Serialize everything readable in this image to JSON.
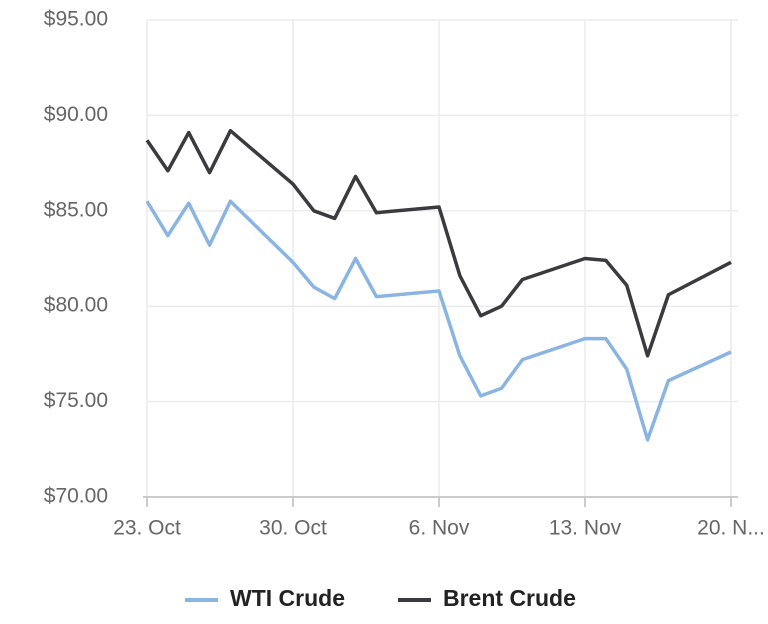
{
  "chart_data": {
    "type": "line",
    "x": [
      "23. Oct",
      "24. Oct",
      "25. Oct",
      "26. Oct",
      "27. Oct",
      "30. Oct",
      "31. Oct",
      "1. Nov",
      "2. Nov",
      "3. Nov",
      "6. Nov",
      "7. Nov",
      "8. Nov",
      "9. Nov",
      "10. Nov",
      "13. Nov",
      "14. Nov",
      "15. Nov",
      "16. Nov",
      "17. Nov",
      "20. Nov"
    ],
    "series": [
      {
        "name": "WTI Crude",
        "color": "#8ab4e2",
        "values": [
          85.5,
          83.7,
          85.4,
          83.2,
          85.5,
          82.3,
          81.0,
          80.4,
          82.5,
          80.5,
          80.8,
          77.4,
          75.3,
          75.7,
          77.2,
          78.3,
          78.3,
          76.7,
          73.0,
          76.1,
          77.6
        ]
      },
      {
        "name": "Brent Crude",
        "color": "#3b3b3f",
        "values": [
          88.7,
          87.1,
          89.1,
          87.0,
          89.2,
          86.4,
          85.0,
          84.6,
          86.8,
          84.9,
          85.2,
          81.6,
          79.5,
          80.0,
          81.4,
          82.5,
          82.4,
          81.1,
          77.4,
          80.6,
          82.3
        ]
      }
    ],
    "xlim": [
      "23. Oct",
      "20. Nov"
    ],
    "xticks": [
      "23. Oct",
      "30. Oct",
      "6. Nov",
      "13. Nov",
      {
        "value": "20. Nov",
        "label": "20. N..."
      }
    ],
    "ylim": [
      70,
      95
    ],
    "yticks": [
      {
        "value": 70,
        "label": "$70.00"
      },
      {
        "value": 75,
        "label": "$75.00"
      },
      {
        "value": 80,
        "label": "$80.00"
      },
      {
        "value": 85,
        "label": "$85.00"
      },
      {
        "value": 90,
        "label": "$90.00"
      },
      {
        "value": 95,
        "label": "$95.00"
      }
    ],
    "grid": true,
    "legend": "bottom"
  }
}
